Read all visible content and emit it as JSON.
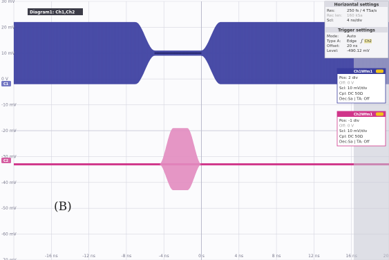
{
  "diagram_tab": {
    "label": "Diagram1: Ch1,Ch2"
  },
  "panel_label": "(B)",
  "colors": {
    "ch1": "#3a3d9e",
    "ch2": "#d0358a",
    "ch2_fill": "#e28bbf",
    "grid": "#d6d6e0",
    "background": "#fbfbfd"
  },
  "chart_data": {
    "type": "line",
    "xlabel": "",
    "ylabel": "",
    "x_ticks": [
      "-16 ns",
      "-12 ns",
      "-8 ns",
      "-4 ns",
      "0 s",
      "4 ns",
      "8 ns",
      "12 ns",
      "16 ns",
      "20 ns"
    ],
    "y_ticks": [
      "30 mV",
      "20 mV",
      "10 mV",
      "0 V",
      "-10 mV",
      "-20 mV",
      "-30 mV",
      "-40 mV",
      "-50 mV",
      "-60 mV",
      "-70 mV"
    ],
    "xlim_ns": [
      -20,
      20
    ],
    "ylim_mV": [
      -70,
      30
    ],
    "series": [
      {
        "name": "Ch1",
        "envelope_x_ns": [
          -20,
          -7,
          -5,
          0,
          2,
          20
        ],
        "envelope_upper_mV": [
          12,
          12,
          1,
          1,
          12,
          12
        ],
        "envelope_lower_mV": [
          -12,
          -12,
          -1,
          -1,
          -12,
          -12
        ]
      },
      {
        "name": "Ch2",
        "baseline_mV": -33,
        "burst_x_ns": [
          -4.5,
          -3,
          -1.5,
          0
        ],
        "burst_upper_mV": [
          -33,
          -19,
          -19,
          -33
        ],
        "burst_lower_mV": [
          -33,
          -43,
          -43,
          -33
        ]
      }
    ]
  },
  "horizontal_settings": {
    "title": "Horizontal settings",
    "rows": [
      {
        "label": "Res:",
        "value": "250 fs / 4 TSa/s"
      },
      {
        "label": "Rec len:",
        "value": "160 kSa"
      },
      {
        "label": "Scl:",
        "value": "4 ns/div"
      }
    ]
  },
  "trigger_settings": {
    "title": "Trigger settings",
    "rows": [
      {
        "label": "Mode:",
        "value": "Auto"
      },
      {
        "label": "Type A:",
        "value": "Edge"
      },
      {
        "label": "Offset:",
        "value": "20 ns"
      },
      {
        "label": "Level:",
        "value": "-490.12 mV"
      }
    ],
    "source": "Ch2"
  },
  "ch1_box": {
    "title": "Ch1Wfm1",
    "marker": "C1",
    "lines": [
      {
        "text": "Pos: 2 div",
        "dim": false
      },
      {
        "text": "Off: 0 V",
        "dim": true
      },
      {
        "text": "Scl: 10 mV/div",
        "dim": false
      },
      {
        "text": "Cpl: DC 50Ω",
        "dim": false
      },
      {
        "text": "Dec:Sa | TA: Off",
        "dim": false
      }
    ]
  },
  "ch2_box": {
    "title": "Ch2Wfm1",
    "marker": "C2",
    "lines": [
      {
        "text": "Pos: -1 div",
        "dim": false
      },
      {
        "text": "Off: 0 V",
        "dim": true
      },
      {
        "text": "Scl: 10 mV/div",
        "dim": false
      },
      {
        "text": "Cpl: DC 50Ω",
        "dim": false
      },
      {
        "text": "Dec:Sa | TA: Off",
        "dim": false
      }
    ]
  }
}
